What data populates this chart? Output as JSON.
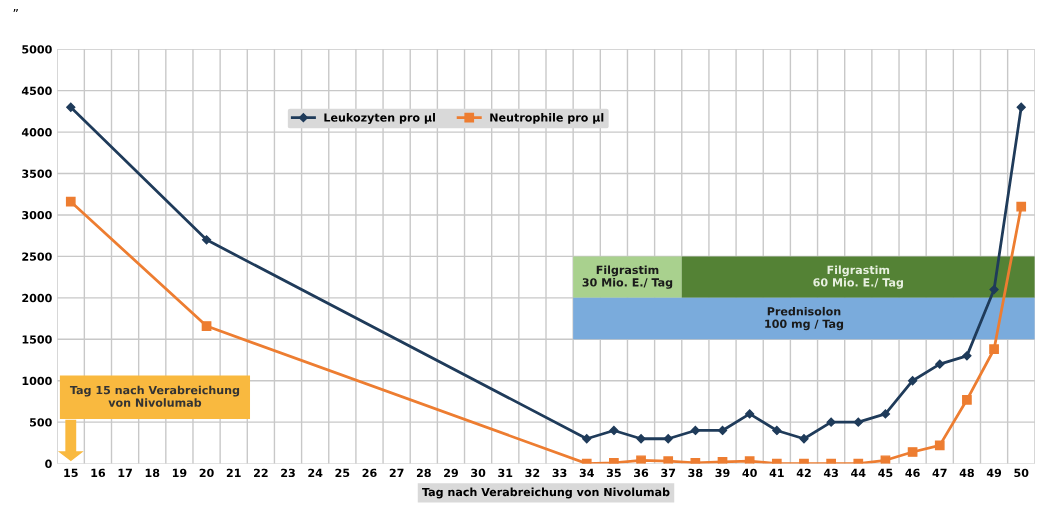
{
  "chart_data": {
    "type": "line",
    "xlabel": "Tag nach Verabreichung von Nivolumab",
    "categories": [
      "15",
      "16",
      "17",
      "18",
      "19",
      "20",
      "21",
      "22",
      "23",
      "24",
      "25",
      "26",
      "27",
      "28",
      "29",
      "30",
      "31",
      "32",
      "33",
      "34",
      "35",
      "36",
      "37",
      "38",
      "39",
      "40",
      "41",
      "42",
      "43",
      "44",
      "45",
      "46",
      "47",
      "48",
      "49",
      "50"
    ],
    "series": [
      {
        "name": "Leukozyten pro µl",
        "color": "#1f3b5a",
        "marker": "diamond",
        "values": [
          4300,
          null,
          null,
          null,
          null,
          2700,
          null,
          null,
          null,
          null,
          null,
          null,
          null,
          null,
          null,
          null,
          null,
          null,
          null,
          300,
          400,
          300,
          300,
          400,
          400,
          600,
          400,
          300,
          500,
          500,
          600,
          1000,
          1200,
          1300,
          2100,
          4300
        ]
      },
      {
        "name": "Neutrophile pro µl",
        "color": "#ed7d31",
        "marker": "square",
        "values": [
          3160,
          null,
          null,
          null,
          null,
          1660,
          null,
          null,
          null,
          null,
          null,
          null,
          null,
          null,
          null,
          null,
          null,
          null,
          null,
          0,
          10,
          40,
          30,
          10,
          20,
          30,
          0,
          0,
          0,
          0,
          40,
          140,
          220,
          770,
          1380,
          3100
        ]
      }
    ],
    "ylim": [
      0,
      5000
    ],
    "yticks": [
      0,
      500,
      1000,
      1500,
      2000,
      2500,
      3000,
      3500,
      4000,
      4500,
      5000
    ],
    "grid": true,
    "legend": "top",
    "bands": [
      {
        "axis": "x",
        "from": "34",
        "to": "37",
        "label": "Filgrastim\n30 Mio. E./ Tag",
        "color": "#a9d18e"
      },
      {
        "axis": "x",
        "from": "38",
        "to": "50",
        "label": "Filgrastim\n60 Mio. E./ Tag",
        "color": "#548235"
      },
      {
        "axis": "x",
        "from": "34",
        "to": "50",
        "label": "Prednisolon\n100 mg / Tag",
        "color": "#7aabdc"
      }
    ],
    "annotations": [
      "”",
      "Tag 15 nach Verabreichung\nvon Nivolumab"
    ]
  }
}
